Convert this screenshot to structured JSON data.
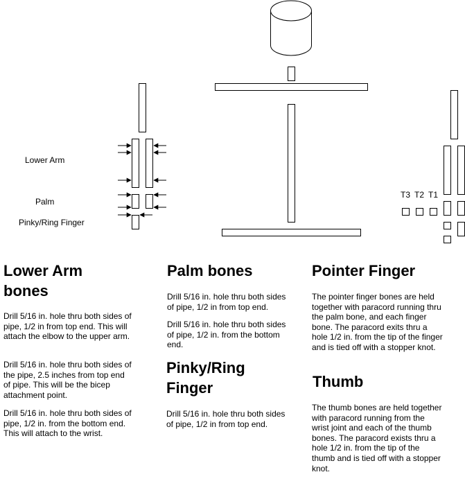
{
  "diagram": {
    "labels": {
      "lower_arm": "Lower Arm",
      "palm": "Palm",
      "pinky_ring": "Pinky/Ring Finger",
      "t3": "T3",
      "t2": "T2",
      "t1": "T1"
    }
  },
  "sections": {
    "lower_arm": {
      "title": "Lower Arm bones",
      "paragraphs": [
        "Drill 5/16 in. hole thru both sides of pipe, 1/2 in from top end. This will attach the elbow to the upper arm.",
        "Drill 5/16 in. hole thru both sides of the pipe, 2.5 inches from top end of pipe. This will be the bicep attachment point.",
        "Drill 5/16 in. hole thru both sides of pipe, 1/2 in. from the bottom end. This will attach to the wrist."
      ]
    },
    "palm": {
      "title": "Palm bones",
      "paragraphs": [
        "Drill 5/16 in. hole thru both sides of pipe, 1/2 in from top end.",
        "Drill 5/16 in. hole thru both sides of pipe, 1/2 in. from the bottom end."
      ]
    },
    "pinky": {
      "title": "Pinky/Ring Finger",
      "paragraphs": [
        "Drill 5/16 in. hole thru both sides of pipe, 1/2 in from top end."
      ]
    },
    "pointer": {
      "title": "Pointer Finger",
      "paragraphs": [
        "The pointer finger bones are held together with paracord running thru the palm bone, and each finger bone. The paracord exits thru a hole 1/2 in. from the tip of the finger and is tied off with a stopper knot."
      ]
    },
    "thumb": {
      "title": "Thumb",
      "paragraphs": [
        "The thumb bones are held together with paracord running from the wrist joint and each of the thumb bones. The paracord exists thru a hole 1/2 in. from the tip of the thumb and is tied off with a stopper knot."
      ]
    }
  }
}
